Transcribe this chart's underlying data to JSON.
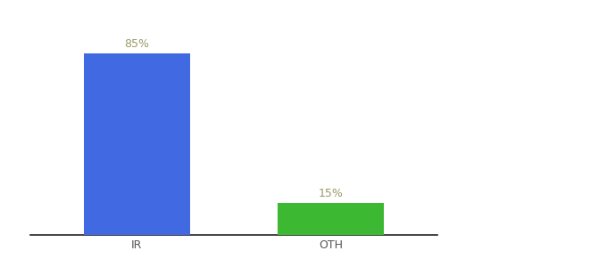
{
  "categories": [
    "IR",
    "OTH"
  ],
  "values": [
    85,
    15
  ],
  "bar_colors": [
    "#4169e1",
    "#3cb832"
  ],
  "value_labels": [
    "85%",
    "15%"
  ],
  "background_color": "#ffffff",
  "label_color": "#999966",
  "label_fontsize": 9,
  "tick_fontsize": 9,
  "ylim": [
    0,
    100
  ],
  "bar_width": 0.55,
  "x_positions": [
    0,
    1
  ],
  "xlim": [
    -0.55,
    1.55
  ]
}
